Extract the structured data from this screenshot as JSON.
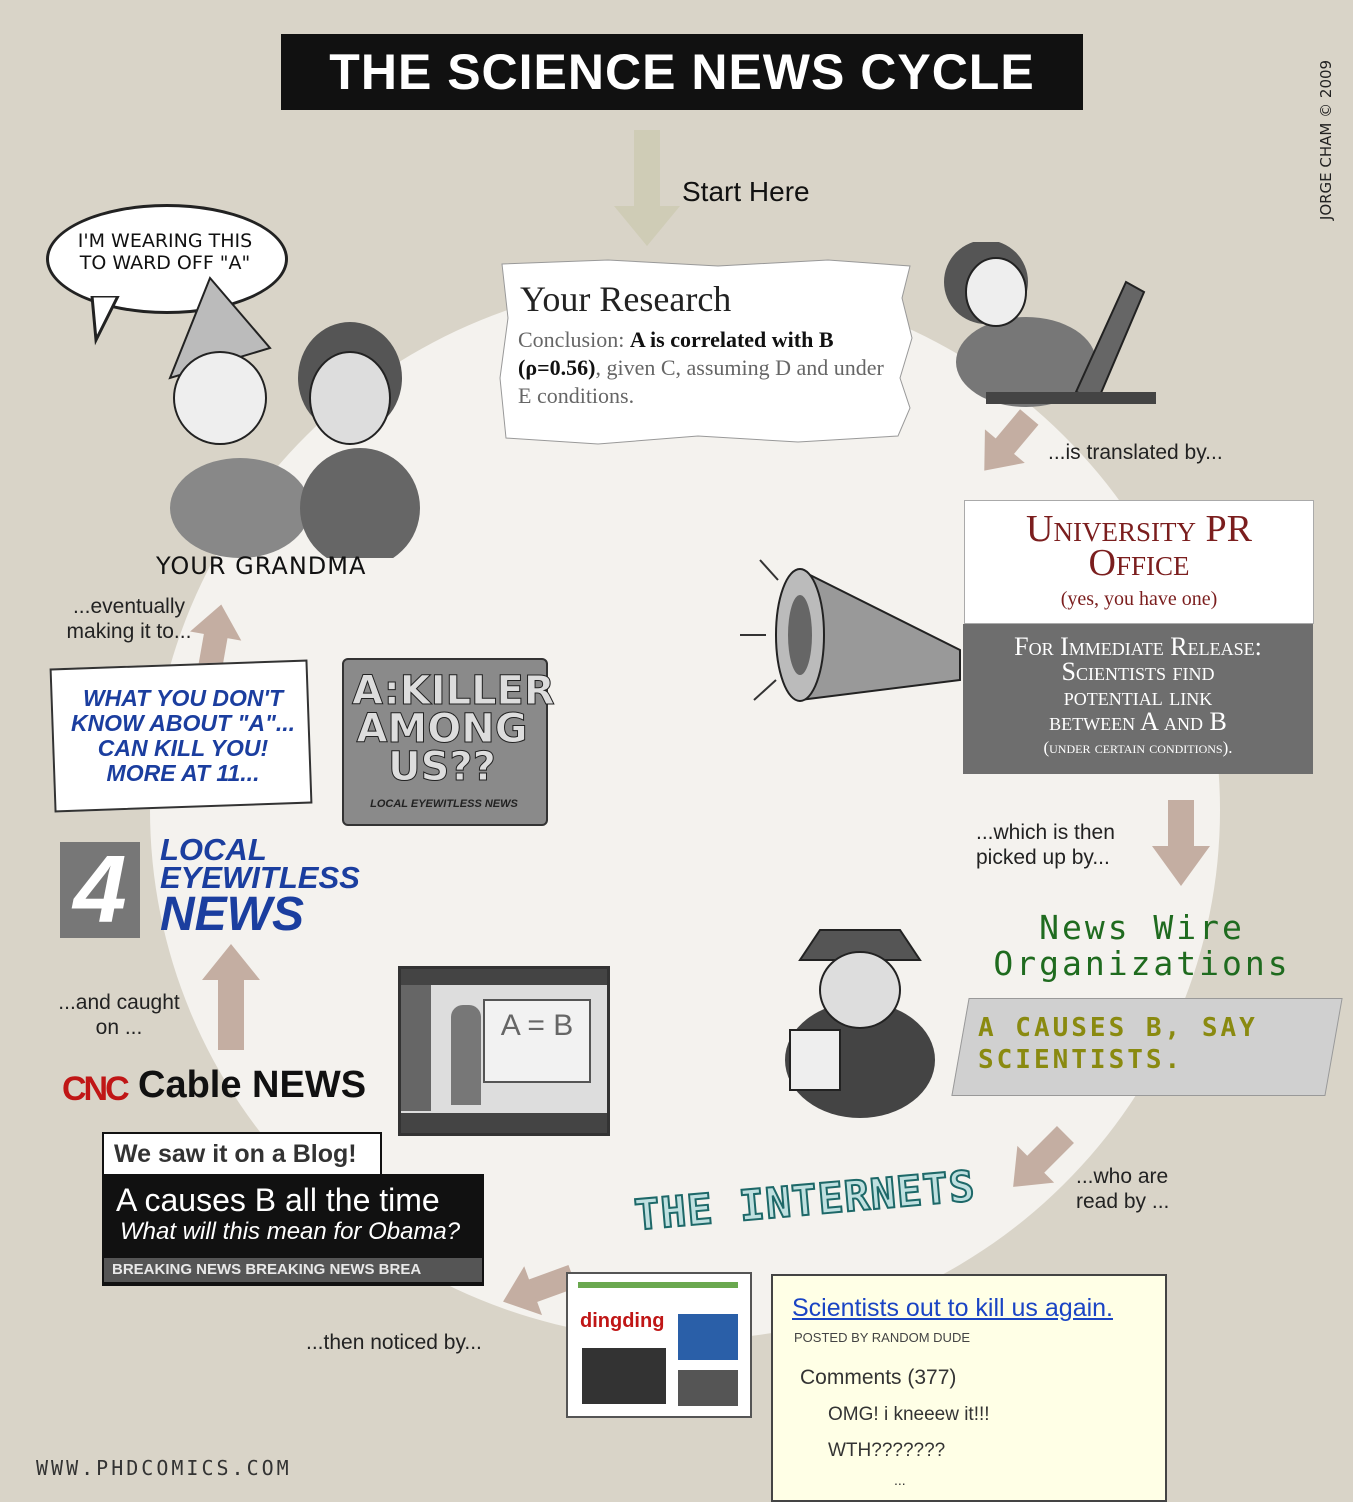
{
  "title": "THE SCIENCE NEWS CYCLE",
  "credit": "JORGE CHAM © 2009",
  "start": "Start Here",
  "research": {
    "title": "Your Research",
    "conclusion_prefix": "Conclusion: ",
    "conclusion_bold": "A is correlated with B (ρ=0.56)",
    "conclusion_rest": ", given C, assuming D and under E conditions."
  },
  "labels": {
    "translated": "...is translated by...",
    "picked_up_1": "...which is then",
    "picked_up_2": "picked up by...",
    "read_by_1": "...who are",
    "read_by_2": "read by ...",
    "noticed": "...then noticed by...",
    "caught_1": "...and caught",
    "caught_2": "on ...",
    "eventually_1": "...eventually",
    "eventually_2": "making it to..."
  },
  "pr": {
    "title_1": "University PR",
    "title_2": "Office",
    "sub": "(yes, you have one)",
    "release_1": "For Immediate Release:",
    "release_2": "Scientists find",
    "release_3": "potential link",
    "release_4": "between A and B",
    "release_5": "(under certain conditions)."
  },
  "wire": {
    "title_1": "News Wire",
    "title_2": "Organizations",
    "headline_1": "A CAUSES B, SAY",
    "headline_2": "SCIENTISTS."
  },
  "internets": "THE INTERNETS",
  "blog": {
    "link": "Scientists out to kill us again.",
    "posted": "POSTED BY RANDOM DUDE",
    "comments": "Comments (377)",
    "c1": "OMG! i kneeew it!!!",
    "c2": "WTH???????",
    "more": "..."
  },
  "website_shot": {
    "name": "dingding"
  },
  "cable": {
    "logo": "CNC",
    "name": "Cable NEWS",
    "tab": "We saw it on a Blog!",
    "headline": "A causes B all the time",
    "sub": "What will this mean for Obama?",
    "crawl": "BREAKING NEWS BREAKING NEWS BREA"
  },
  "tv_screen": {
    "board": "A = B"
  },
  "local": {
    "number": "4",
    "line1": "LOCAL",
    "line2": "EYEWITLESS",
    "line3": "NEWS",
    "promo_1": "WHAT YOU DON'T",
    "promo_2": "KNOW ABOUT \"A\"...",
    "promo_3": "CAN KILL YOU!",
    "promo_4": "MORE AT 11...",
    "killer_1": "A:KILLER",
    "killer_2": "AMONG",
    "killer_3": "US??",
    "killer_foot": "LOCAL EYEWITLESS NEWS"
  },
  "grandma": {
    "label": "YOUR GRANDMA",
    "speech_1": "I'M WEARING THIS",
    "speech_2": "TO WARD OFF \"A\""
  },
  "website": "WWW.PHDCOMICS.COM",
  "colors": {
    "background": "#d9d4c8",
    "ring": "#f4f2ee",
    "arrow": "#c4aea2",
    "start_arrow": "#cfccb6",
    "pr_red": "#7b1e1e",
    "wire_green": "#1f6b1f",
    "news_blue": "#1b3e9f",
    "cnc_red": "#c01616"
  }
}
